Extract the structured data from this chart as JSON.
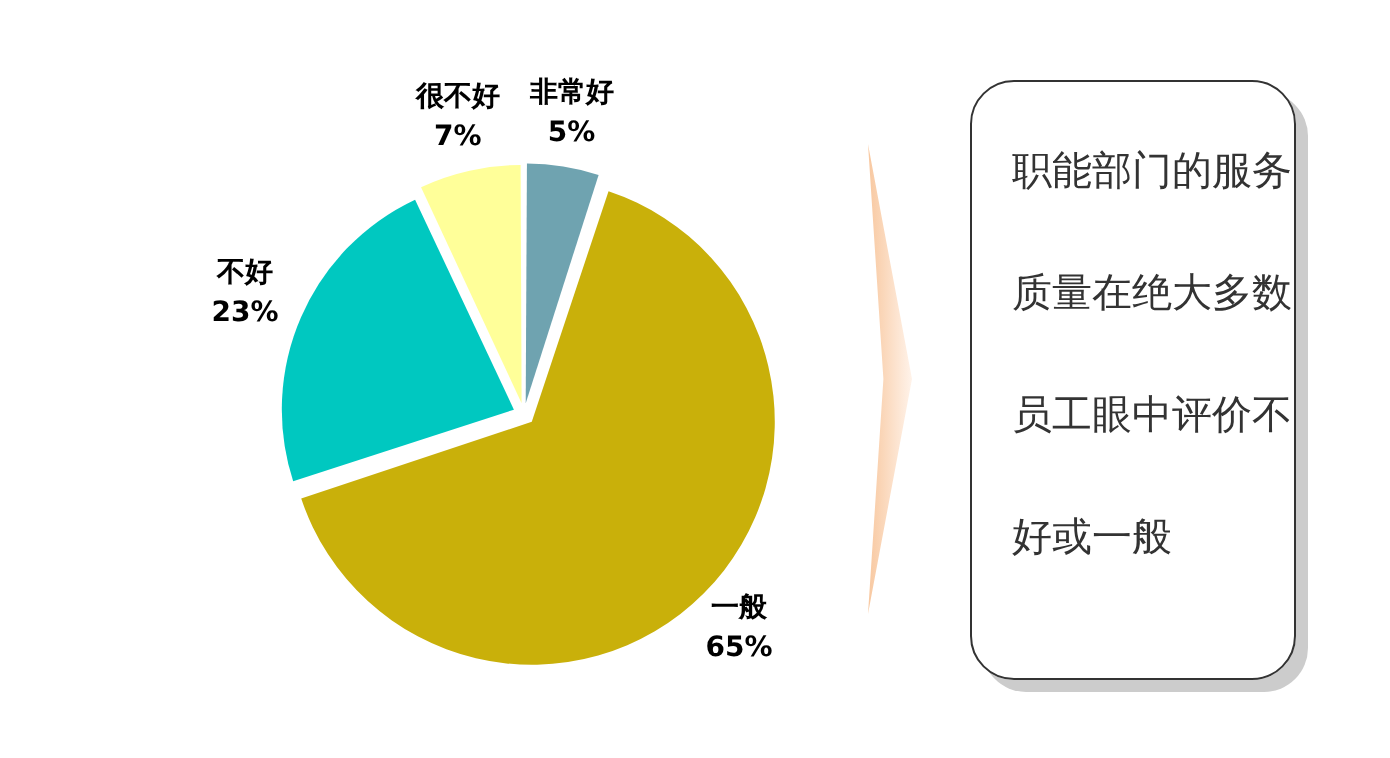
{
  "chart_data": {
    "type": "pie",
    "categories": [
      "非常好",
      "一般",
      "不好",
      "很不好"
    ],
    "values": [
      5,
      65,
      23,
      7
    ],
    "value_labels": [
      "5%",
      "65%",
      "23%",
      "7%"
    ],
    "colors": [
      "#6fa3b0",
      "#c9b00a",
      "#00c8c0",
      "#ffff99"
    ],
    "legend": false,
    "annotations": [
      "职能部门的服务质量在绝大多数员工眼中评价不好或一般"
    ]
  }
}
